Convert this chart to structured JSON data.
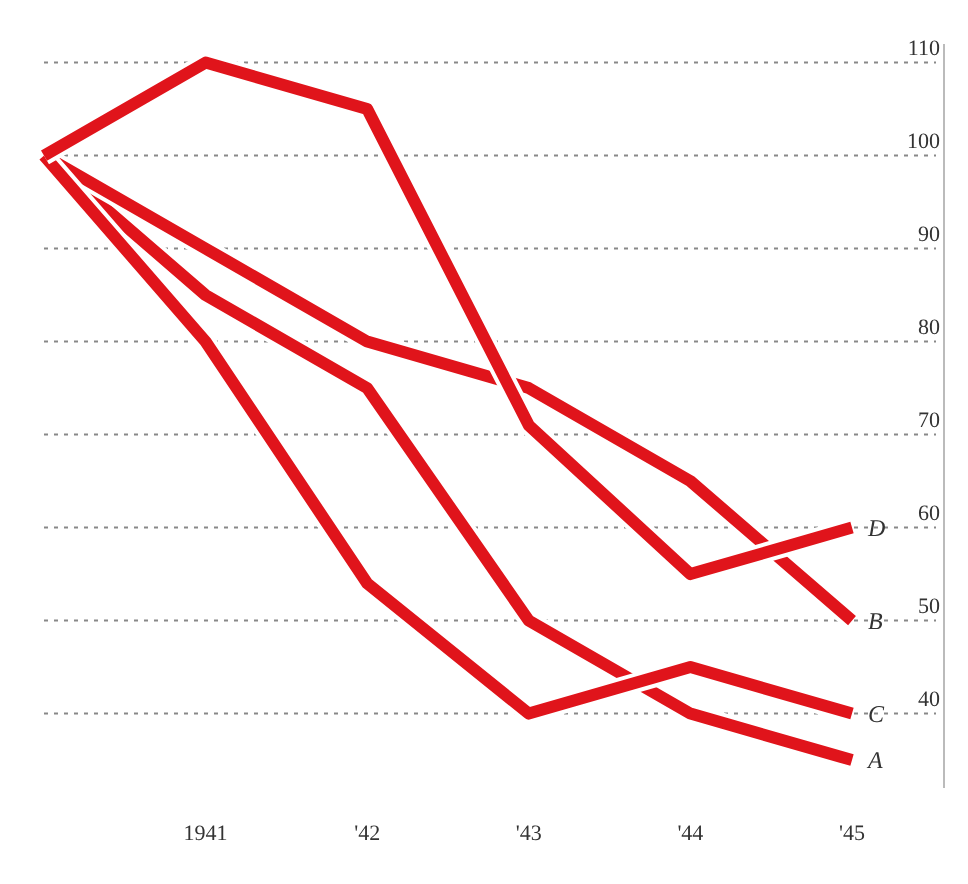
{
  "chart_data": {
    "type": "line",
    "categories": [
      null,
      "1941",
      "'42",
      "'43",
      "'44",
      "'45"
    ],
    "series": [
      {
        "name": "A",
        "color": "#e0141b",
        "values": [
          100,
          85,
          75,
          50,
          40,
          35
        ]
      },
      {
        "name": "B",
        "color": "#e0141b",
        "values": [
          100,
          90,
          80,
          75,
          65,
          50
        ]
      },
      {
        "name": "C",
        "color": "#e0141b",
        "values": [
          100,
          80,
          54,
          40,
          45,
          40
        ]
      },
      {
        "name": "D",
        "color": "#e0141b",
        "values": [
          100,
          110,
          105,
          71,
          55,
          60
        ]
      }
    ],
    "ylim": [
      32,
      112
    ],
    "yticks": [
      40,
      50,
      60,
      70,
      80,
      90,
      100,
      110
    ],
    "grid": "y",
    "legend": false,
    "marker": "none",
    "line_style": "solid"
  }
}
